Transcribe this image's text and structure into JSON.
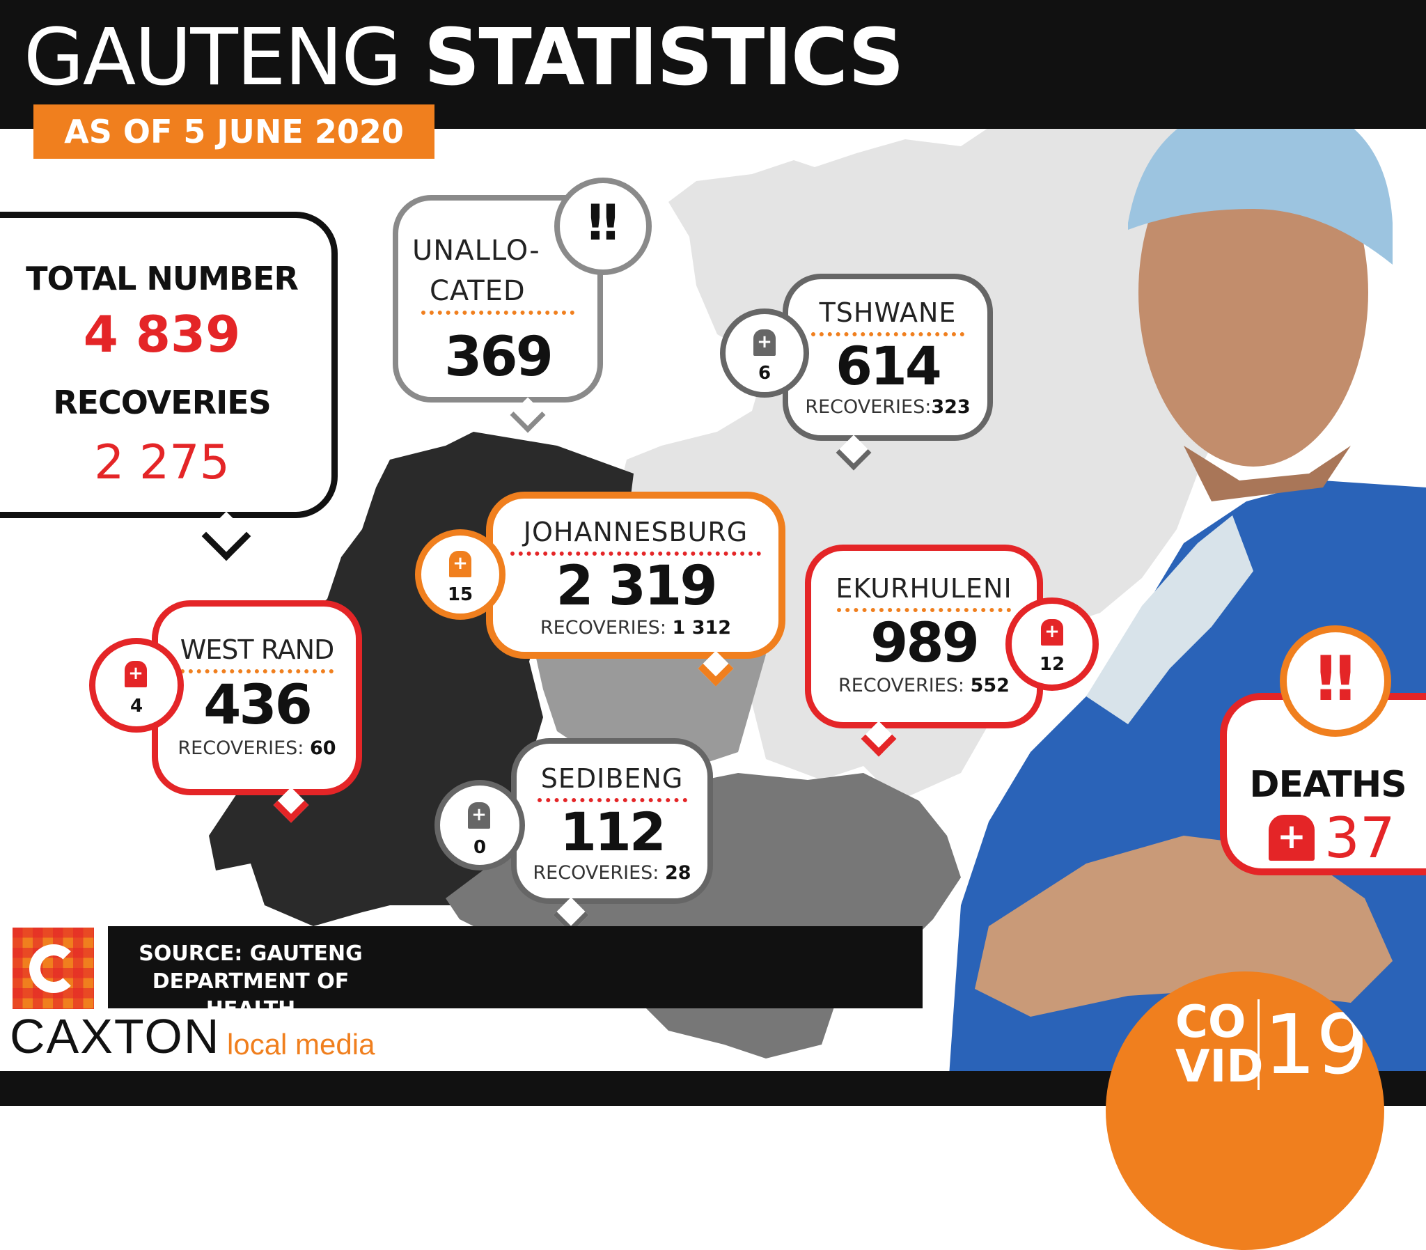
{
  "header": {
    "title_light": "GAUTENG",
    "title_bold": "STATISTICS",
    "date": "AS OF 5 JUNE 2020"
  },
  "total": {
    "heading": "TOTAL NUMBER",
    "cases": "4 839",
    "recoveries_heading": "RECOVERIES",
    "recoveries": "2 275"
  },
  "regions": {
    "unallocated": {
      "name_line1": "UNALLO-",
      "name_line2": "CATED",
      "cases": "369"
    },
    "tshwane": {
      "name": "TSHWANE",
      "cases": "614",
      "recoveries_label": "RECOVERIES:",
      "recoveries": "323",
      "deaths": "6"
    },
    "johannesburg": {
      "name": "JOHANNESBURG",
      "cases": "2 319",
      "recoveries_label": "RECOVERIES:",
      "recoveries": "1 312",
      "deaths": "15"
    },
    "ekurhuleni": {
      "name": "EKURHULENI",
      "cases": "989",
      "recoveries_label": "RECOVERIES:",
      "recoveries": "552",
      "deaths": "12"
    },
    "west_rand": {
      "name": "WEST RAND",
      "cases": "436",
      "recoveries_label": "RECOVERIES:",
      "recoveries": "60",
      "deaths": "4"
    },
    "sedibeng": {
      "name": "SEDIBENG",
      "cases": "112",
      "recoveries_label": "RECOVERIES:",
      "recoveries": "28",
      "deaths": "0"
    }
  },
  "deaths": {
    "label": "DEATHS",
    "value": "37"
  },
  "source": {
    "line1": "SOURCE: GAUTENG",
    "line2": "DEPARTMENT OF HEALTH"
  },
  "brand": {
    "name": "CAXTON",
    "sub": "local media"
  },
  "covid_badge": {
    "line1": "CO",
    "line2": "VID",
    "number": "19"
  },
  "colors": {
    "orange": "#f07f1e",
    "red": "#e42527",
    "grey": "#8a8a8a",
    "dark": "#111111"
  },
  "icons": [
    "exclamation-icon",
    "tombstone-cross-icon",
    "caxton-logo"
  ]
}
